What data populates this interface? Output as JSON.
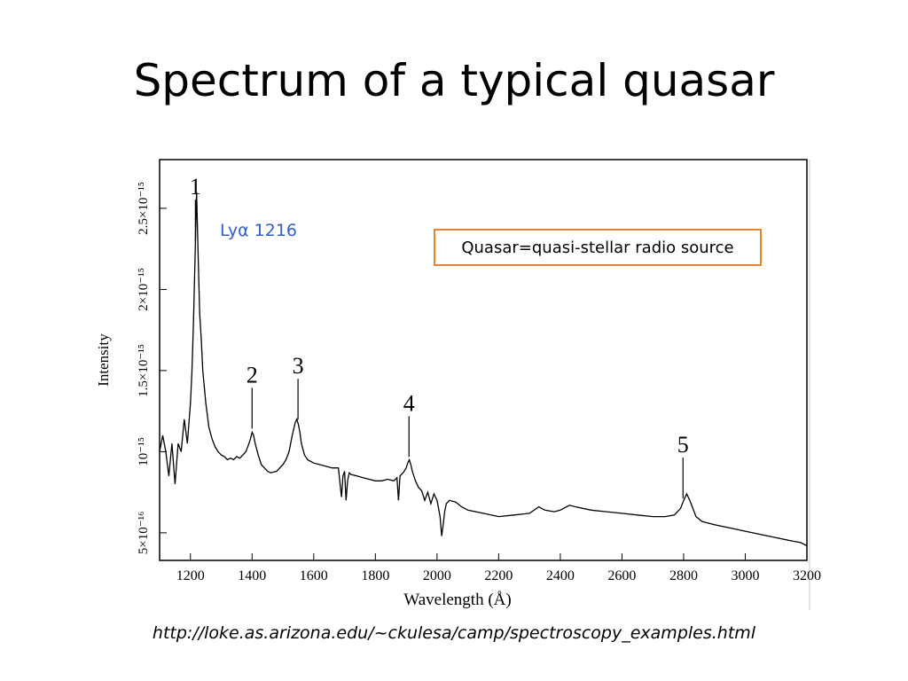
{
  "slide": {
    "title": "Spectrum of a typical quasar",
    "source_url": "http://loke.as.arizona.edu/~ckulesa/camp/spectroscopy_examples.html"
  },
  "colors": {
    "callout_text": "#2f5fce",
    "box_border": "#e8833a"
  },
  "chart_data": {
    "type": "line",
    "xlabel": "Wavelength (Å)",
    "ylabel": "Intensity",
    "xlim": [
      1100,
      3200
    ],
    "ylim": [
      3.3e-16,
      2.8e-15
    ],
    "x_ticks": [
      1200,
      1400,
      1600,
      1800,
      2000,
      2200,
      2400,
      2600,
      2800,
      3000,
      3200
    ],
    "y_ticks": [
      {
        "value": 5e-16,
        "label": "5×10⁻¹⁶"
      },
      {
        "value": 1e-15,
        "label": "10⁻¹⁵"
      },
      {
        "value": 1.5e-15,
        "label": "1.5×10⁻¹⁵"
      },
      {
        "value": 2e-15,
        "label": "2×10⁻¹⁵"
      },
      {
        "value": 2.5e-15,
        "label": "2.5×10⁻¹⁵"
      }
    ],
    "series": [
      {
        "x": [
          1100,
          1110,
          1120,
          1130,
          1140,
          1150,
          1160,
          1170,
          1180,
          1190,
          1200,
          1205,
          1210,
          1215,
          1220,
          1225,
          1230,
          1235,
          1240,
          1250,
          1260,
          1270,
          1280,
          1290,
          1300,
          1310,
          1320,
          1330,
          1340,
          1350,
          1360,
          1370,
          1380,
          1390,
          1395,
          1400,
          1405,
          1410,
          1420,
          1430,
          1440,
          1450,
          1460,
          1480,
          1500,
          1510,
          1520,
          1530,
          1540,
          1545,
          1550,
          1555,
          1560,
          1570,
          1580,
          1600,
          1620,
          1640,
          1660,
          1680,
          1690,
          1695,
          1700,
          1705,
          1710,
          1715,
          1720,
          1740,
          1760,
          1780,
          1800,
          1820,
          1840,
          1860,
          1870,
          1875,
          1880,
          1890,
          1900,
          1905,
          1910,
          1915,
          1920,
          1930,
          1940,
          1950,
          1960,
          1970,
          1980,
          1990,
          2000,
          2010,
          2015,
          2020,
          2025,
          2030,
          2040,
          2060,
          2080,
          2100,
          2150,
          2200,
          2250,
          2300,
          2330,
          2350,
          2380,
          2400,
          2430,
          2450,
          2500,
          2550,
          2600,
          2650,
          2700,
          2740,
          2770,
          2790,
          2800,
          2810,
          2820,
          2830,
          2840,
          2860,
          2900,
          2950,
          3000,
          3050,
          3100,
          3150,
          3180,
          3200
        ],
        "values": [
          1e-15,
          1.1e-15,
          1e-15,
          8.5e-16,
          1.05e-15,
          8e-16,
          1.05e-15,
          1e-15,
          1.2e-15,
          1.05e-15,
          1.3e-15,
          1.5e-15,
          1.8e-15,
          2.2e-15,
          2.6e-15,
          2.2e-15,
          1.85e-15,
          1.7e-15,
          1.5e-15,
          1.3e-15,
          1.15e-15,
          1.08e-15,
          1.03e-15,
          1e-15,
          9.8e-16,
          9.7e-16,
          9.5e-16,
          9.6e-16,
          9.5e-16,
          9.7e-16,
          9.6e-16,
          9.8e-16,
          1e-15,
          1.05e-15,
          1.08e-15,
          1.12e-15,
          1.1e-15,
          1.05e-15,
          9.8e-16,
          9.2e-16,
          9e-16,
          8.8e-16,
          8.7e-16,
          8.8e-16,
          9.2e-16,
          9.5e-16,
          1e-15,
          1.1e-15,
          1.18e-15,
          1.2e-15,
          1.17e-15,
          1.12e-15,
          1.05e-15,
          9.8e-16,
          9.5e-16,
          9.3e-16,
          9.2e-16,
          9.1e-16,
          9e-16,
          9e-16,
          7.2e-16,
          8.5e-16,
          8.8e-16,
          7e-16,
          8.2e-16,
          8.7e-16,
          8.6e-16,
          8.5e-16,
          8.4e-16,
          8.3e-16,
          8.2e-16,
          8.2e-16,
          8.3e-16,
          8.2e-16,
          8.4e-16,
          7e-16,
          8.5e-16,
          8.7e-16,
          9e-16,
          9.3e-16,
          9.5e-16,
          9.2e-16,
          8.8e-16,
          8.2e-16,
          7.8e-16,
          7.6e-16,
          7e-16,
          7.5e-16,
          6.8e-16,
          7.4e-16,
          7e-16,
          6e-16,
          4.8e-16,
          5.5e-16,
          6.3e-16,
          6.8e-16,
          7e-16,
          6.9e-16,
          6.6e-16,
          6.4e-16,
          6.2e-16,
          6e-16,
          6.1e-16,
          6.2e-16,
          6.6e-16,
          6.4e-16,
          6.3e-16,
          6.4e-16,
          6.7e-16,
          6.6e-16,
          6.4e-16,
          6.3e-16,
          6.2e-16,
          6.1e-16,
          6e-16,
          6e-16,
          6.1e-16,
          6.5e-16,
          7e-16,
          7.4e-16,
          7e-16,
          6.5e-16,
          6e-16,
          5.7e-16,
          5.5e-16,
          5.3e-16,
          5.1e-16,
          4.9e-16,
          4.7e-16,
          4.5e-16,
          4.4e-16,
          4.2e-16
        ]
      }
    ],
    "line_labels": [
      {
        "label": "1",
        "x": 1216
      },
      {
        "label": "2",
        "x": 1400
      },
      {
        "label": "3",
        "x": 1549
      },
      {
        "label": "4",
        "x": 1909
      },
      {
        "label": "5",
        "x": 2798
      }
    ],
    "callout": "Lyα 1216",
    "box_note": "Quasar=quasi-stellar radio source"
  }
}
